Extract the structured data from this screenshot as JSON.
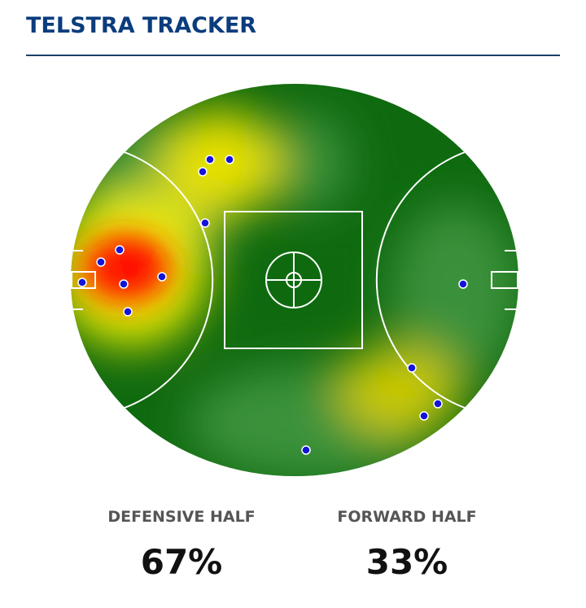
{
  "header": {
    "title": "TELSTRA TRACKER"
  },
  "stats": [
    {
      "label": "DEFENSIVE HALF",
      "value": "67%"
    },
    {
      "label": "FORWARD HALF",
      "value": "33%"
    }
  ]
}
